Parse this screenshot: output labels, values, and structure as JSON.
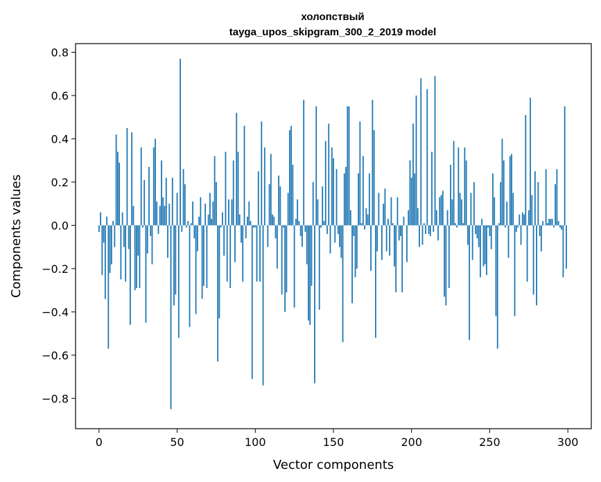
{
  "chart_data": {
    "type": "bar",
    "title": "холопствый",
    "subtitle": "tayga_upos_skipgram_300_2_2019 model",
    "xlabel": "Vector components",
    "ylabel": "Components values",
    "xlim": [
      -15,
      315
    ],
    "ylim": [
      -0.94,
      0.84
    ],
    "xticks": [
      0,
      50,
      100,
      150,
      200,
      250,
      300
    ],
    "xtick_labels": [
      "0",
      "50",
      "100",
      "150",
      "200",
      "250",
      "300"
    ],
    "yticks": [
      -0.8,
      -0.6,
      -0.4,
      -0.2,
      0.0,
      0.2,
      0.4,
      0.6,
      0.8
    ],
    "ytick_labels": [
      "−0.8",
      "−0.6",
      "−0.4",
      "−0.2",
      "0.0",
      "0.2",
      "0.4",
      "0.6",
      "0.8"
    ],
    "grid": false,
    "color": "#1f77b4",
    "values": [
      -0.03,
      0.06,
      -0.23,
      -0.08,
      -0.34,
      0.04,
      -0.57,
      -0.22,
      -0.18,
      0.02,
      -0.1,
      0.42,
      0.34,
      0.29,
      -0.25,
      0.06,
      -0.1,
      -0.26,
      0.45,
      -0.11,
      -0.46,
      0.43,
      0.09,
      -0.3,
      -0.29,
      -0.14,
      -0.29,
      0.36,
      -0.01,
      0.21,
      -0.45,
      -0.13,
      0.27,
      -0.05,
      -0.18,
      0.36,
      0.4,
      0.11,
      -0.04,
      0.09,
      0.3,
      0.13,
      0.09,
      0.22,
      -0.15,
      0.1,
      -0.85,
      0.22,
      -0.37,
      -0.32,
      0.15,
      -0.52,
      0.77,
      -0.03,
      0.26,
      0.19,
      -0.01,
      0.02,
      -0.47,
      0.01,
      0.11,
      -0.06,
      -0.41,
      -0.12,
      0.04,
      0.13,
      -0.34,
      -0.28,
      0.1,
      -0.29,
      0.05,
      0.15,
      0.03,
      0.11,
      0.32,
      0.2,
      -0.63,
      -0.43,
      -0.01,
      0.06,
      -0.14,
      0.34,
      -0.26,
      0.12,
      -0.29,
      0.12,
      0.3,
      -0.17,
      0.52,
      0.34,
      0.05,
      -0.08,
      -0.26,
      0.46,
      -0.06,
      0.04,
      0.11,
      0.02,
      -0.71,
      -0.01,
      -0.01,
      -0.26,
      0.25,
      -0.26,
      0.48,
      -0.74,
      0.36,
      0.0,
      -0.1,
      0.19,
      0.33,
      0.05,
      0.04,
      -0.06,
      -0.2,
      0.23,
      0.18,
      -0.32,
      -0.01,
      -0.4,
      -0.31,
      0.15,
      0.44,
      0.46,
      0.28,
      -0.38,
      0.03,
      0.12,
      0.02,
      -0.05,
      -0.1,
      0.58,
      -0.03,
      -0.18,
      -0.44,
      -0.46,
      -0.28,
      0.2,
      -0.73,
      0.55,
      0.12,
      -0.39,
      -0.01,
      0.18,
      0.02,
      0.39,
      -0.04,
      0.47,
      -0.13,
      0.36,
      0.31,
      -0.08,
      0.26,
      -0.04,
      -0.1,
      -0.15,
      -0.54,
      0.24,
      0.27,
      0.55,
      0.55,
      0.07,
      -0.36,
      -0.05,
      -0.24,
      -0.2,
      0.24,
      0.48,
      0.01,
      0.32,
      -0.02,
      0.08,
      0.05,
      0.24,
      -0.21,
      0.58,
      0.44,
      -0.52,
      -0.12,
      0.15,
      0.0,
      -0.16,
      0.1,
      0.17,
      -0.12,
      0.03,
      -0.14,
      0.13,
      0.01,
      -0.19,
      -0.31,
      0.13,
      -0.07,
      -0.05,
      -0.31,
      0.04,
      0.0,
      -0.17,
      0.07,
      0.3,
      0.22,
      0.47,
      0.24,
      0.6,
      0.08,
      -0.1,
      0.68,
      -0.09,
      0.01,
      -0.04,
      0.63,
      -0.04,
      -0.05,
      0.34,
      -0.03,
      0.69,
      0.07,
      -0.07,
      0.13,
      0.14,
      0.16,
      -0.33,
      -0.37,
      0.07,
      -0.29,
      0.28,
      0.12,
      0.39,
      0.01,
      -0.01,
      0.36,
      0.15,
      0.12,
      0.01,
      0.36,
      0.3,
      -0.09,
      -0.53,
      0.15,
      -0.16,
      0.2,
      -0.04,
      -0.06,
      -0.1,
      -0.24,
      0.03,
      -0.19,
      -0.18,
      -0.23,
      -0.01,
      -0.05,
      -0.11,
      0.24,
      0.13,
      -0.42,
      -0.57,
      0.01,
      0.2,
      0.4,
      0.3,
      -0.01,
      0.11,
      -0.15,
      0.32,
      0.33,
      0.15,
      -0.42,
      -0.03,
      -0.01,
      0.05,
      -0.09,
      0.06,
      0.05,
      0.51,
      -0.26,
      0.07,
      0.59,
      0.14,
      -0.32,
      0.25,
      -0.37,
      0.2,
      -0.05,
      -0.12,
      0.02,
      0.0,
      0.26,
      0.01,
      0.03,
      0.03,
      0.03,
      -0.01,
      0.19,
      0.26,
      0.02,
      -0.01,
      -0.02,
      -0.24,
      0.55,
      -0.2
    ]
  }
}
